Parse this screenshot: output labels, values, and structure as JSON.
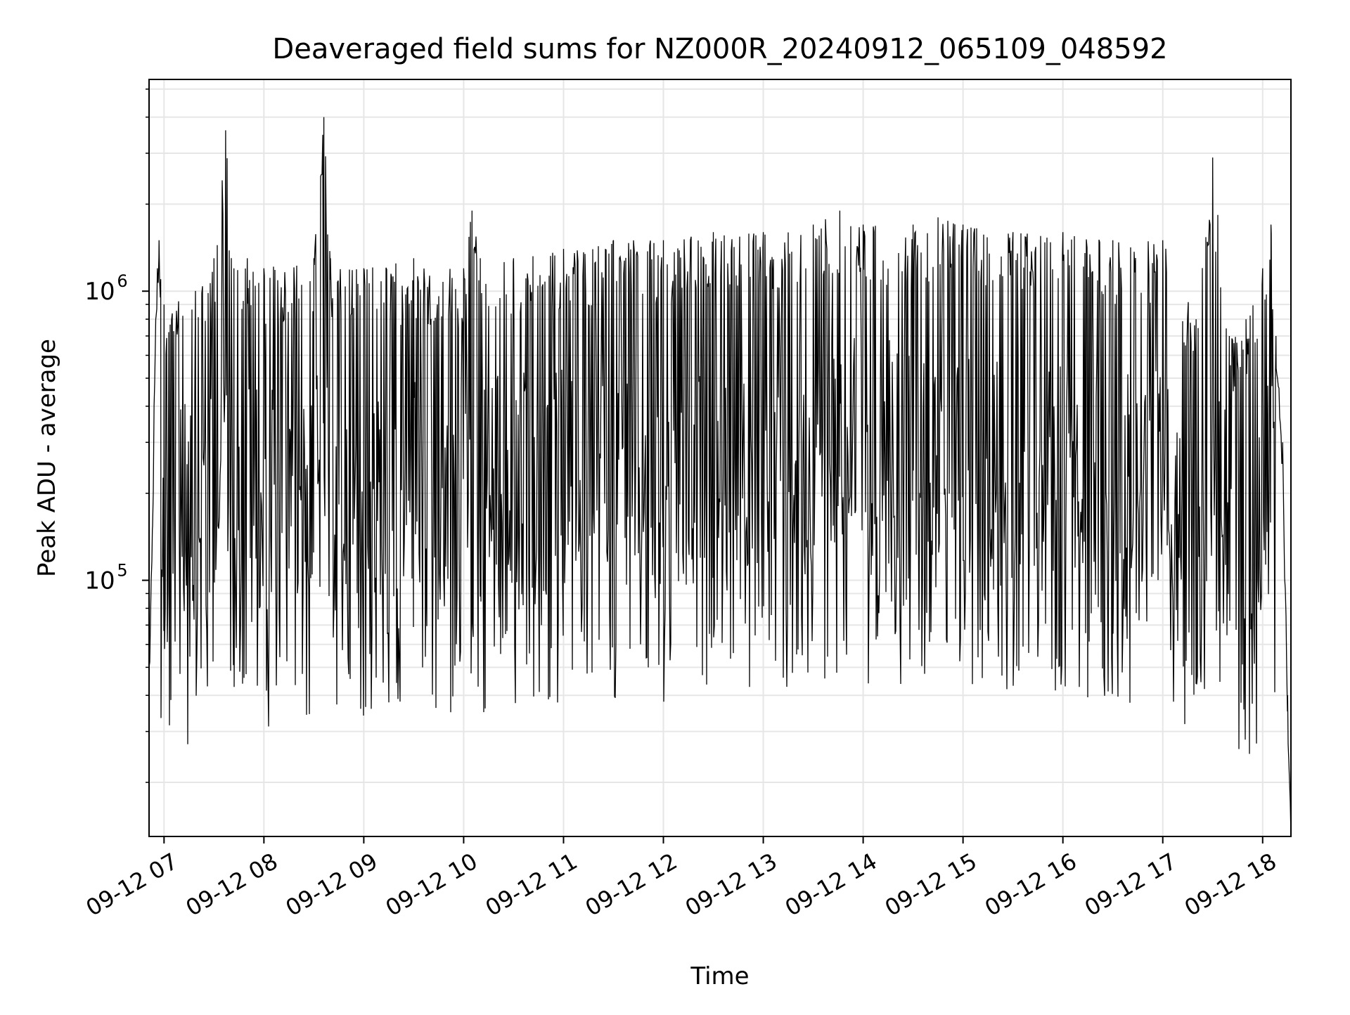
{
  "chart_data": {
    "type": "line",
    "title": "Deaveraged field sums for NZ000R_20240912_065109_048592",
    "xlabel": "Time",
    "ylabel": "Peak ADU - average",
    "x_tick_labels": [
      "09-12 07",
      "09-12 08",
      "09-12 09",
      "09-12 10",
      "09-12 11",
      "09-12 12",
      "09-12 13",
      "09-12 14",
      "09-12 15",
      "09-12 16",
      "09-12 17",
      "09-12 18"
    ],
    "x_tick_values": [
      "2024-09-12 07:00",
      "2024-09-12 08:00",
      "2024-09-12 09:00",
      "2024-09-12 10:00",
      "2024-09-12 11:00",
      "2024-09-12 12:00",
      "2024-09-12 13:00",
      "2024-09-12 14:00",
      "2024-09-12 15:00",
      "2024-09-12 16:00",
      "2024-09-12 17:00",
      "2024-09-12 18:00"
    ],
    "y_major_ticks": [
      100000,
      1000000
    ],
    "y_tick_labels": [
      "10",
      "10"
    ],
    "y_tick_exponents": [
      "5",
      "6"
    ],
    "y_scale": "log",
    "xlim": [
      "2024-09-12 06:51",
      "2024-09-12 18:17"
    ],
    "ylim": [
      13000,
      5400000
    ],
    "grid": true,
    "line_color": "#000000",
    "series": [
      {
        "x": [
          "2024-09-12 06:51",
          "2024-09-12 06:53",
          "2024-09-12 06:54",
          "2024-09-12 06:55",
          "2024-09-12 06:56",
          "2024-09-12 06:57",
          "2024-09-12 06:58",
          "2024-09-12 07:00",
          "2024-09-12 07:30",
          "2024-09-12 07:37",
          "2024-09-12 07:42",
          "2024-09-12 07:50",
          "2024-09-12 08:00",
          "2024-09-12 08:30",
          "2024-09-12 08:36",
          "2024-09-12 08:40",
          "2024-09-12 09:00",
          "2024-09-12 09:30",
          "2024-09-12 10:00",
          "2024-09-12 10:05",
          "2024-09-12 10:10",
          "2024-09-12 10:30",
          "2024-09-12 11:00",
          "2024-09-12 11:30",
          "2024-09-12 12:00",
          "2024-09-12 12:30",
          "2024-09-12 13:00",
          "2024-09-12 13:30",
          "2024-09-12 13:46",
          "2024-09-12 14:00",
          "2024-09-12 14:30",
          "2024-09-12 14:45",
          "2024-09-12 15:00",
          "2024-09-12 15:30",
          "2024-09-12 16:00",
          "2024-09-12 16:30",
          "2024-09-12 17:00",
          "2024-09-12 17:20",
          "2024-09-12 17:30",
          "2024-09-12 17:40",
          "2024-09-12 17:50",
          "2024-09-12 18:00",
          "2024-09-12 18:05",
          "2024-09-12 18:08",
          "2024-09-12 18:12",
          "2024-09-12 18:15",
          "2024-09-12 18:17"
        ],
        "y": [
          50000,
          150000,
          400000,
          800000,
          1200000,
          1500000,
          1100000,
          900000,
          1300000,
          3600000,
          1200000,
          1300000,
          1200000,
          1300000,
          4000000,
          1300000,
          1200000,
          1300000,
          1200000,
          1900000,
          1300000,
          1300000,
          1400000,
          1500000,
          1500000,
          1600000,
          1600000,
          1700000,
          1900000,
          1700000,
          1700000,
          1800000,
          1700000,
          1600000,
          1600000,
          1500000,
          1500000,
          800000,
          2900000,
          700000,
          800000,
          1200000,
          1700000,
          700000,
          300000,
          40000,
          15000
        ]
      }
    ]
  }
}
